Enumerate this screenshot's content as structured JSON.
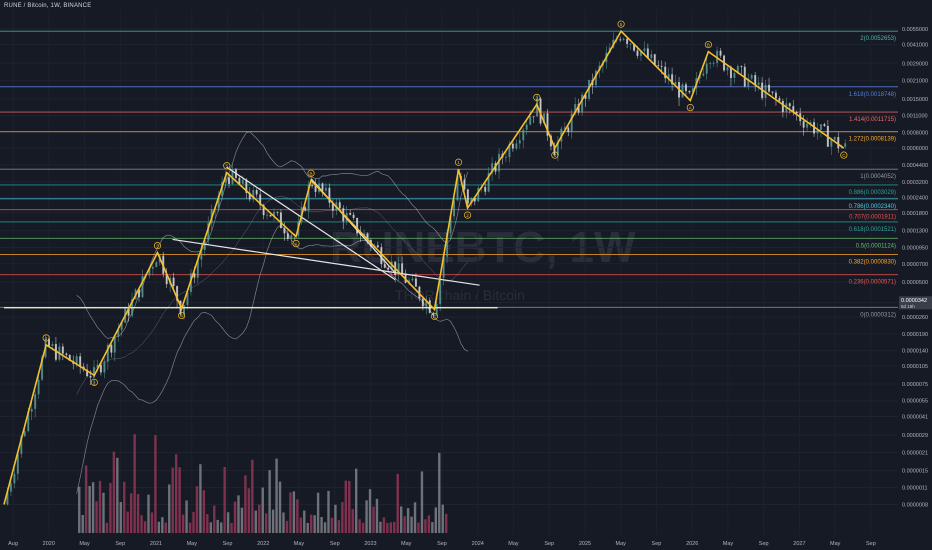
{
  "header": {
    "symbol": "RUNE / Bitcoin, 1W, BINANCE"
  },
  "watermark": {
    "ticker": "RUNEBTC, 1W",
    "name": "THORChain / Bitcoin"
  },
  "colors": {
    "background": "#161a25",
    "wave": "#f5c02b",
    "trendline": "#e6e6e6",
    "up_candle": "#5b9e98",
    "down_candle": "#e0e0e0",
    "volume_up": "#8c8f96",
    "volume_down": "#a33a5c",
    "bollinger": "#a9adb4"
  },
  "chart_data": {
    "type": "candlestick",
    "title": "RUNE / Bitcoin, 1W, BINANCE",
    "yscale": "log",
    "ylim": [
      6e-07,
      0.0078
    ],
    "x_ticks": [
      "Aug",
      "2020",
      "May",
      "Sep",
      "2021",
      "May",
      "Sep",
      "2022",
      "May",
      "Sep",
      "2023",
      "May",
      "Sep",
      "2024",
      "May",
      "Sep",
      "2025",
      "May",
      "Sep",
      "2026",
      "May",
      "Sep",
      "2027",
      "May",
      "Sep"
    ],
    "y_ticks": [
      "0.0055000",
      "0.0041000",
      "0.0029000",
      "0.0021000",
      "0.0015000",
      "0.0011000",
      "0.0008000",
      "0.0006000",
      "0.0004400",
      "0.0003200",
      "0.0002400",
      "0.0001800",
      "0.0001300",
      "0.0000950",
      "0.0000700",
      "0.0000500",
      "0.0000342",
      "0.0000260",
      "0.0000190",
      "0.0000140",
      "0.0000105",
      "0.0000075",
      "0.0000055",
      "0.0000041",
      "0.0000029",
      "0.0000021",
      "0.0000015",
      "0.0000011",
      "0.0000008"
    ],
    "last_price": {
      "value": "0.0000342",
      "countdown": "5d 19h"
    },
    "fib_levels": [
      {
        "label": "2(0.0052653)",
        "value": 0.0052653,
        "color": "#4db6ac"
      },
      {
        "label": "1.618(0.0018748)",
        "value": 0.0018748,
        "color": "#5b7ed8"
      },
      {
        "label": "1.414(0.0011715)",
        "value": 0.0011715,
        "color": "#f06a6a"
      },
      {
        "label": "1.272(0.0008139)",
        "value": 0.0008139,
        "color": "#ffa726"
      },
      {
        "label": "1(0.0004052)",
        "value": 0.0004052,
        "color": "#9598a1"
      },
      {
        "label": "0.886(0.0003029)",
        "value": 0.0003029,
        "color": "#26a69a"
      },
      {
        "label": "0.786(0.0002340)",
        "value": 0.000234,
        "color": "#4dd0e1"
      },
      {
        "label": "0.707(0.0001911)",
        "value": 0.0001911,
        "color": "#ef5350"
      },
      {
        "label": "0.618(0.0001521)",
        "value": 0.0001521,
        "color": "#26a69a"
      },
      {
        "label": "0.5(0.0001124)",
        "value": 0.0001124,
        "color": "#66bb6a"
      },
      {
        "label": "0.382(0.0000830)",
        "value": 8.3e-05,
        "color": "#ffa726"
      },
      {
        "label": "0.236(0.0000571)",
        "value": 5.71e-05,
        "color": "#ef5350"
      },
      {
        "label": "0(0.0000312)",
        "value": 3.12e-05,
        "color": "#9598a1"
      }
    ],
    "elliott_waves": [
      {
        "label": "①",
        "t": 0.14,
        "value": 1.55e-05
      },
      {
        "label": "②",
        "t": 0.3,
        "value": 8.8e-06
      },
      {
        "label": "③",
        "t": 0.51,
        "value": 8.6e-05
      },
      {
        "label": "④",
        "t": 0.59,
        "value": 3.05e-05
      },
      {
        "label": "⑤",
        "t": 0.74,
        "value": 0.00038
      },
      {
        "label": "Ⓐ",
        "t": 0.97,
        "value": 0.000116
      },
      {
        "label": "Ⓑ",
        "t": 1.02,
        "value": 0.00033
      },
      {
        "label": "Ⓒ",
        "t": 1.43,
        "value": 3e-05
      },
      {
        "label": "①",
        "t": 1.51,
        "value": 0.0004052
      },
      {
        "label": "②",
        "t": 1.54,
        "value": 0.000197
      },
      {
        "label": "③",
        "t": 1.77,
        "value": 0.00135
      },
      {
        "label": "④",
        "t": 1.83,
        "value": 0.0006
      },
      {
        "label": "⑤",
        "t": 2.05,
        "value": 0.0052653
      },
      {
        "label": "Ⓐ",
        "t": 2.28,
        "value": 0.00145
      },
      {
        "label": "Ⓑ",
        "t": 2.34,
        "value": 0.0036
      },
      {
        "label": "Ⓒ",
        "t": 2.79,
        "value": 0.0006
      }
    ],
    "start_value": 8e-07
  }
}
